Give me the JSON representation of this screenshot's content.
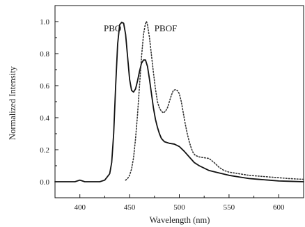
{
  "chart_data": {
    "type": "line",
    "title": "",
    "xlabel": "Wavelength (nm)",
    "ylabel": "Normalized Intensity",
    "xlim": [
      375,
      625
    ],
    "ylim": [
      -0.1,
      1.1
    ],
    "x_ticks": [
      400,
      450,
      500,
      550,
      600
    ],
    "y_ticks": [
      0.0,
      0.2,
      0.4,
      0.6,
      0.8,
      1.0
    ],
    "x_tick_labels": [
      "400",
      "450",
      "500",
      "550",
      "600"
    ],
    "y_tick_labels": [
      "0.0",
      "0.2",
      "0.4",
      "0.6",
      "0.8",
      "1.0"
    ],
    "grid": false,
    "series": [
      {
        "name": "PBO",
        "style": "solid",
        "color": "#111111",
        "x": [
          375,
          395,
          400,
          405,
          420,
          425,
          430,
          432,
          434,
          436,
          438,
          440,
          442,
          444,
          446,
          448,
          450,
          452,
          454,
          456,
          458,
          460,
          462,
          464,
          466,
          468,
          470,
          472,
          474,
          476,
          478,
          480,
          482,
          485,
          490,
          495,
          500,
          505,
          510,
          515,
          520,
          530,
          540,
          550,
          560,
          570,
          580,
          590,
          600,
          610,
          625
        ],
        "y": [
          0.0,
          0.0,
          0.01,
          0.0,
          0.0,
          0.01,
          0.05,
          0.12,
          0.3,
          0.6,
          0.86,
          0.98,
          0.995,
          0.99,
          0.92,
          0.78,
          0.64,
          0.57,
          0.56,
          0.58,
          0.63,
          0.69,
          0.74,
          0.76,
          0.76,
          0.72,
          0.64,
          0.55,
          0.46,
          0.39,
          0.34,
          0.3,
          0.27,
          0.25,
          0.24,
          0.235,
          0.22,
          0.19,
          0.155,
          0.12,
          0.1,
          0.07,
          0.055,
          0.04,
          0.03,
          0.02,
          0.015,
          0.01,
          0.005,
          0.003,
          0.0
        ]
      },
      {
        "name": "PBOF",
        "style": "dotted",
        "color": "#333333",
        "x": [
          446,
          448,
          450,
          452,
          454,
          456,
          458,
          460,
          462,
          464,
          466,
          467,
          468,
          470,
          472,
          474,
          476,
          478,
          480,
          482,
          484,
          486,
          488,
          490,
          492,
          494,
          496,
          498,
          500,
          502,
          504,
          506,
          508,
          510,
          512,
          514,
          516,
          518,
          520,
          525,
          530,
          535,
          540,
          545,
          550,
          560,
          570,
          580,
          590,
          600,
          610,
          625
        ],
        "y": [
          0.01,
          0.02,
          0.04,
          0.08,
          0.15,
          0.27,
          0.42,
          0.6,
          0.78,
          0.92,
          0.99,
          1.0,
          0.98,
          0.9,
          0.79,
          0.68,
          0.58,
          0.5,
          0.46,
          0.44,
          0.43,
          0.44,
          0.46,
          0.5,
          0.54,
          0.57,
          0.575,
          0.57,
          0.55,
          0.5,
          0.43,
          0.36,
          0.3,
          0.25,
          0.21,
          0.18,
          0.165,
          0.16,
          0.155,
          0.15,
          0.145,
          0.12,
          0.09,
          0.07,
          0.06,
          0.05,
          0.04,
          0.035,
          0.03,
          0.025,
          0.02,
          0.015
        ]
      }
    ],
    "annotations": [
      {
        "text": "PBO",
        "x": 424,
        "y": 0.96
      },
      {
        "text": "PBOF",
        "x": 475,
        "y": 0.96
      }
    ]
  }
}
